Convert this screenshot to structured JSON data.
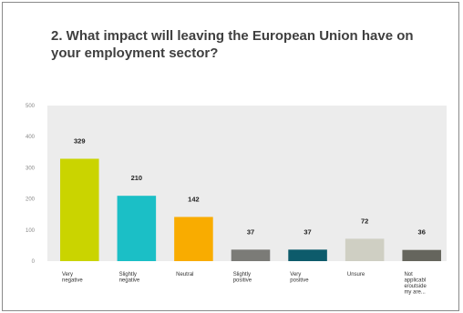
{
  "title": "2. What impact will leaving the European Union have on your employment sector?",
  "chart_data": {
    "type": "bar",
    "categories": [
      [
        "Very",
        "negative"
      ],
      [
        "Slightly",
        "negative"
      ],
      [
        "Neutral"
      ],
      [
        "Slightly",
        "positive"
      ],
      [
        "Very",
        "positive"
      ],
      [
        "Unsure"
      ],
      [
        "Not",
        "applicabl",
        "e/outside",
        "my are..."
      ]
    ],
    "values": [
      329,
      210,
      142,
      37,
      37,
      72,
      36
    ],
    "colors": [
      "#cad400",
      "#1bbfc6",
      "#f9ac00",
      "#7b7b77",
      "#0d5b6b",
      "#cfcfc3",
      "#65655d"
    ],
    "ylim": [
      0,
      500
    ],
    "yticks": [
      0,
      100,
      200,
      300,
      400,
      500
    ],
    "grid": false,
    "plot_background": "#ececec",
    "xlabel": "",
    "ylabel": ""
  }
}
